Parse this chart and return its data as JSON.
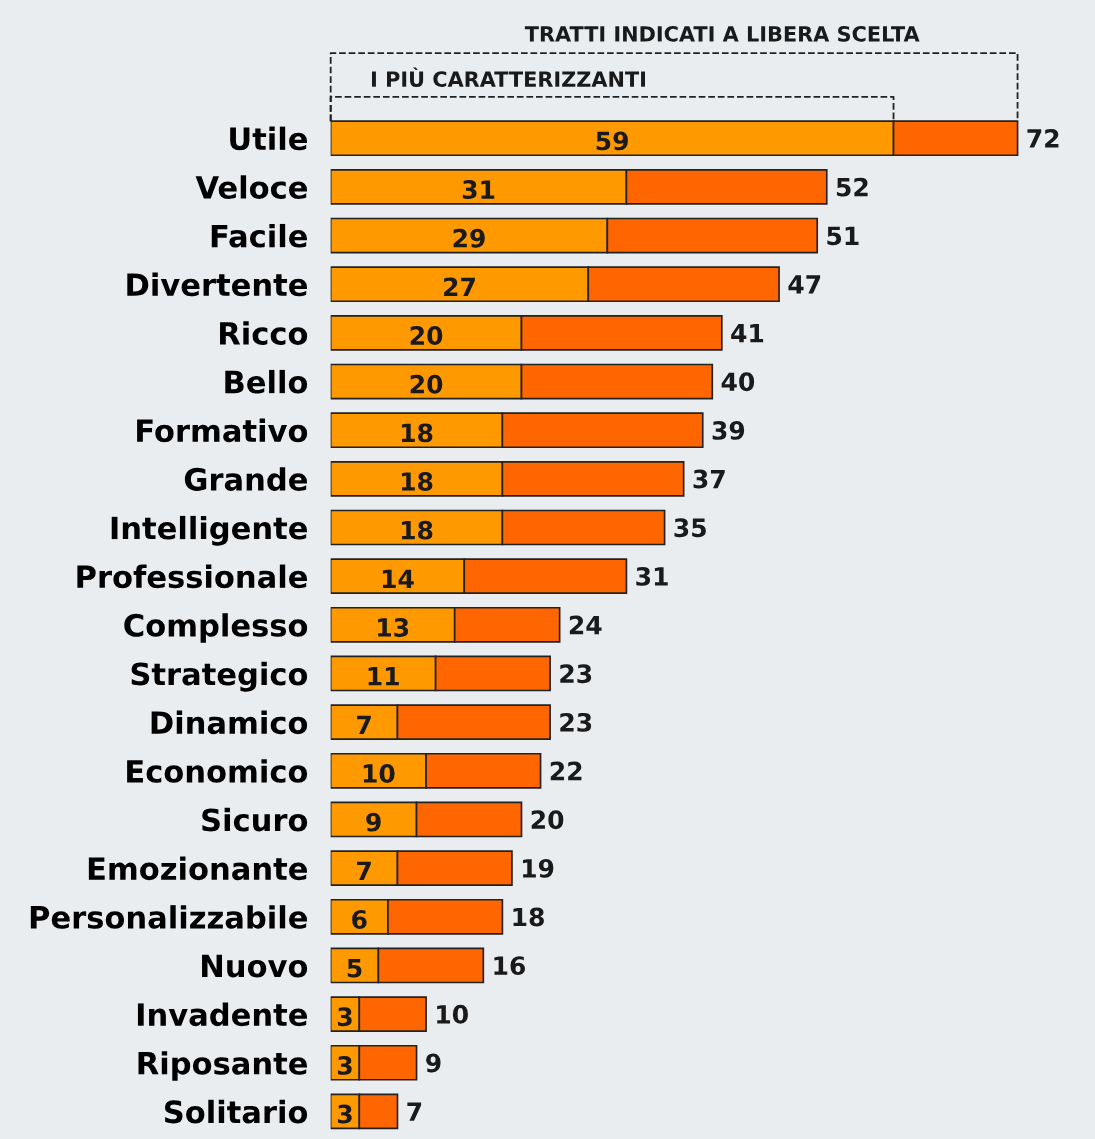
{
  "chart_data": {
    "type": "bar",
    "orientation": "horizontal",
    "stacked": true,
    "tick_labels": "y",
    "grid": false,
    "legend": false,
    "categories": [
      "Utile",
      "Veloce",
      "Facile",
      "Divertente",
      "Ricco",
      "Bello",
      "Formativo",
      "Grande",
      "Intelligente",
      "Professionale",
      "Complesso",
      "Strategico",
      "Dinamico",
      "Economico",
      "Sicuro",
      "Emozionante",
      "Personalizzabile",
      "Nuovo",
      "Invadente",
      "Riposante",
      "Solitario"
    ],
    "series": [
      {
        "color": "#ff9900",
        "values": [
          59,
          31,
          29,
          27,
          20,
          20,
          18,
          18,
          18,
          14,
          13,
          11,
          7,
          10,
          9,
          7,
          6,
          5,
          3,
          3,
          3
        ],
        "value_labels": [
          "59",
          "31",
          "29",
          "27",
          "20",
          "20",
          "18",
          "18",
          "18",
          "14",
          "13",
          "11",
          "7",
          "10",
          "9",
          "7",
          "6",
          "5",
          "3",
          "3",
          "3"
        ]
      },
      {
        "color": "#ff6600",
        "values": [
          13,
          21,
          22,
          20,
          21,
          20,
          21,
          19,
          17,
          17,
          11,
          12,
          16,
          12,
          11,
          12,
          12,
          11,
          7,
          6,
          4
        ]
      }
    ],
    "totals": [
      "72",
      "52",
      "51",
      "47",
      "41",
      "40",
      "39",
      "37",
      "35",
      "31",
      "24",
      "23",
      "23",
      "22",
      "20",
      "19",
      "18",
      "16",
      "10",
      "9",
      "7"
    ],
    "annotations": [
      "TRATTI INDICATI A LIBERA SCELTA",
      "I PIÙ CARATTERIZZANTI"
    ]
  }
}
